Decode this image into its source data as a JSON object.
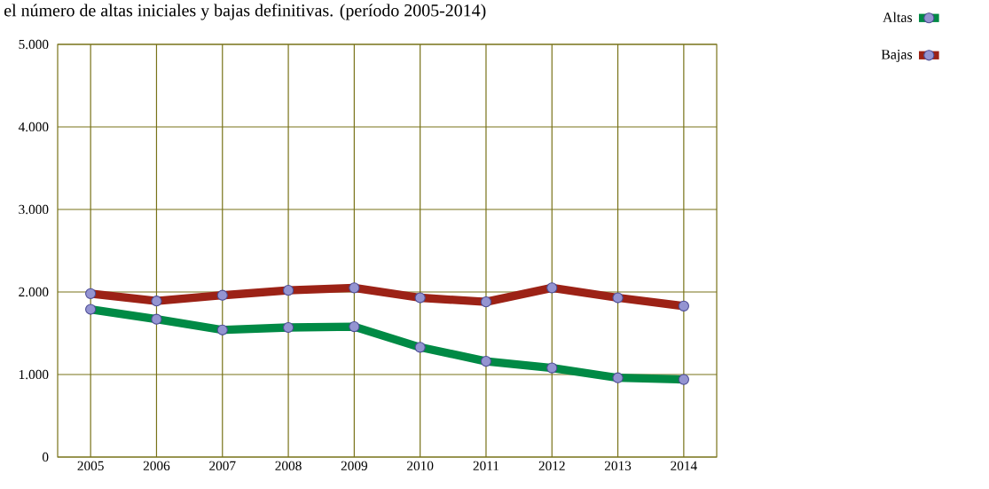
{
  "chart_data": {
    "type": "line",
    "title": "el número de altas iniciales y bajas definitivas. (período 2005-2014)",
    "categories": [
      "2005",
      "2006",
      "2007",
      "2008",
      "2009",
      "2010",
      "2011",
      "2012",
      "2013",
      "2014"
    ],
    "series": [
      {
        "name": "Altas",
        "color": "#008a45",
        "values": [
          1790,
          1670,
          1540,
          1570,
          1580,
          1330,
          1160,
          1080,
          960,
          940
        ]
      },
      {
        "name": "Bajas",
        "color": "#9c2216",
        "values": [
          1980,
          1890,
          1960,
          2020,
          2050,
          1930,
          1880,
          2050,
          1930,
          1830
        ]
      }
    ],
    "ylim": [
      0,
      5000
    ],
    "yticks": [
      {
        "value": 0,
        "label": "0"
      },
      {
        "value": 1000,
        "label": "1.000"
      },
      {
        "value": 2000,
        "label": "2.000"
      },
      {
        "value": 3000,
        "label": "3.000"
      },
      {
        "value": 4000,
        "label": "4.000"
      },
      {
        "value": 5000,
        "label": "5.000"
      }
    ],
    "grid": true,
    "legend": "top right",
    "marker": "circle",
    "line_style": "solid"
  }
}
